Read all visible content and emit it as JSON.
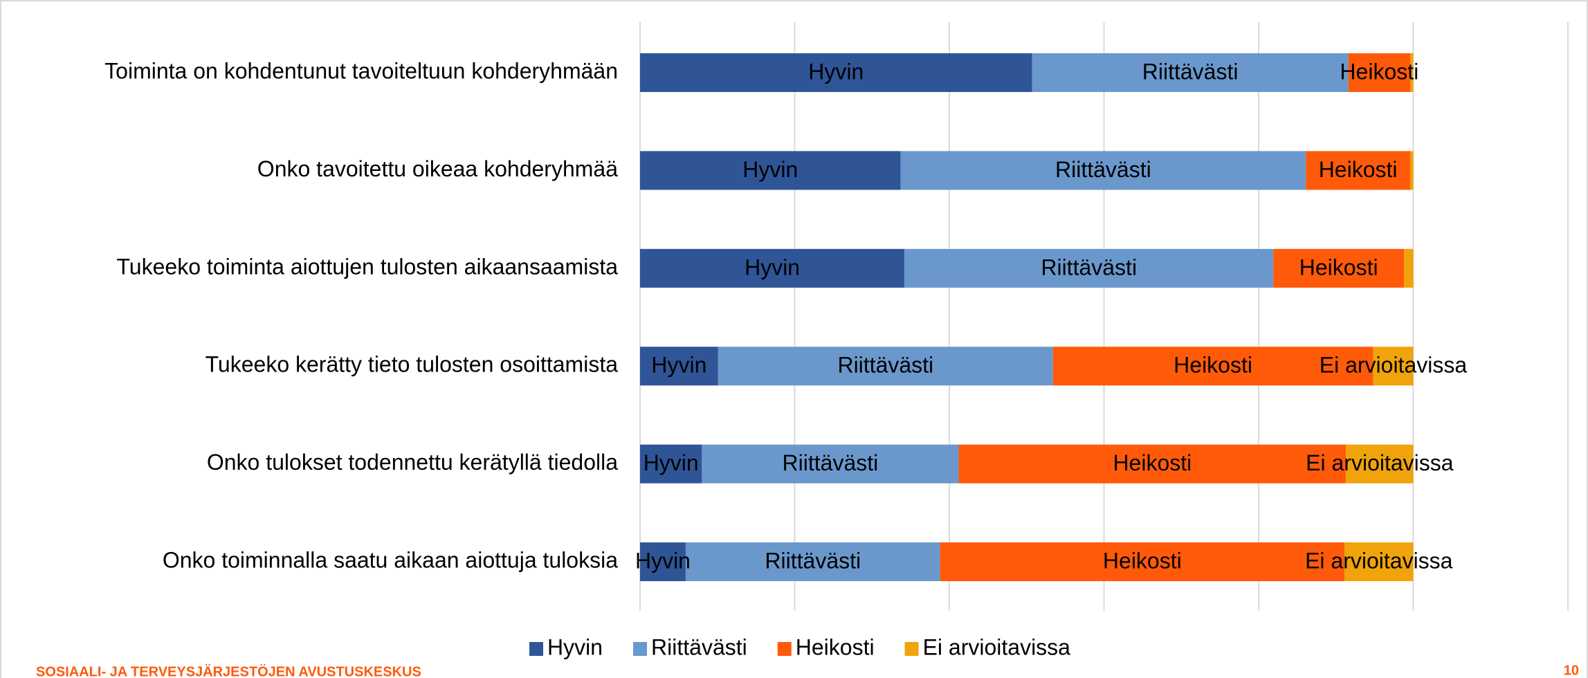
{
  "chart_data": {
    "type": "stacked_barh",
    "categories": [
      "Toiminta on kohdentunut tavoiteltuun kohderyhmään",
      "Onko tavoitettu oikeaa kohderyhmää",
      "Tukeeko toiminta aiottujen tulosten aikaansaamista",
      "Tukeeko kerätty tieto tulosten osoittamista",
      "Onko tulokset todennettu kerätyllä tiedolla",
      "Onko toiminnalla saatu aikaan aiottuja tuloksia"
    ],
    "series": [
      {
        "name": "Hyvin",
        "color": "#2f5597",
        "values": [
          50.7,
          33.7,
          34.2,
          10.1,
          8.0,
          5.9
        ]
      },
      {
        "name": "Riittävästi",
        "color": "#6a98cc",
        "values": [
          40.9,
          52.4,
          47.7,
          43.3,
          33.2,
          32.9
        ]
      },
      {
        "name": "Heikosti",
        "color": "#ff5a0a",
        "values": [
          8.0,
          13.5,
          16.9,
          41.4,
          50.1,
          52.3
        ]
      },
      {
        "name": "Ei arvioitavissa",
        "color": "#f0a30a",
        "values": [
          0.4,
          0.4,
          1.2,
          5.2,
          8.7,
          8.9
        ]
      }
    ],
    "xlim": [
      0,
      120
    ],
    "xticks": [
      0,
      20,
      40,
      60,
      80,
      100,
      120
    ],
    "grid": true,
    "legend": "bottom"
  },
  "footer": {
    "organization": "SOSIAALI- JA TERVEYSJÄRJESTÖJEN AVUSTUSKESKUS",
    "page_number": "10"
  }
}
